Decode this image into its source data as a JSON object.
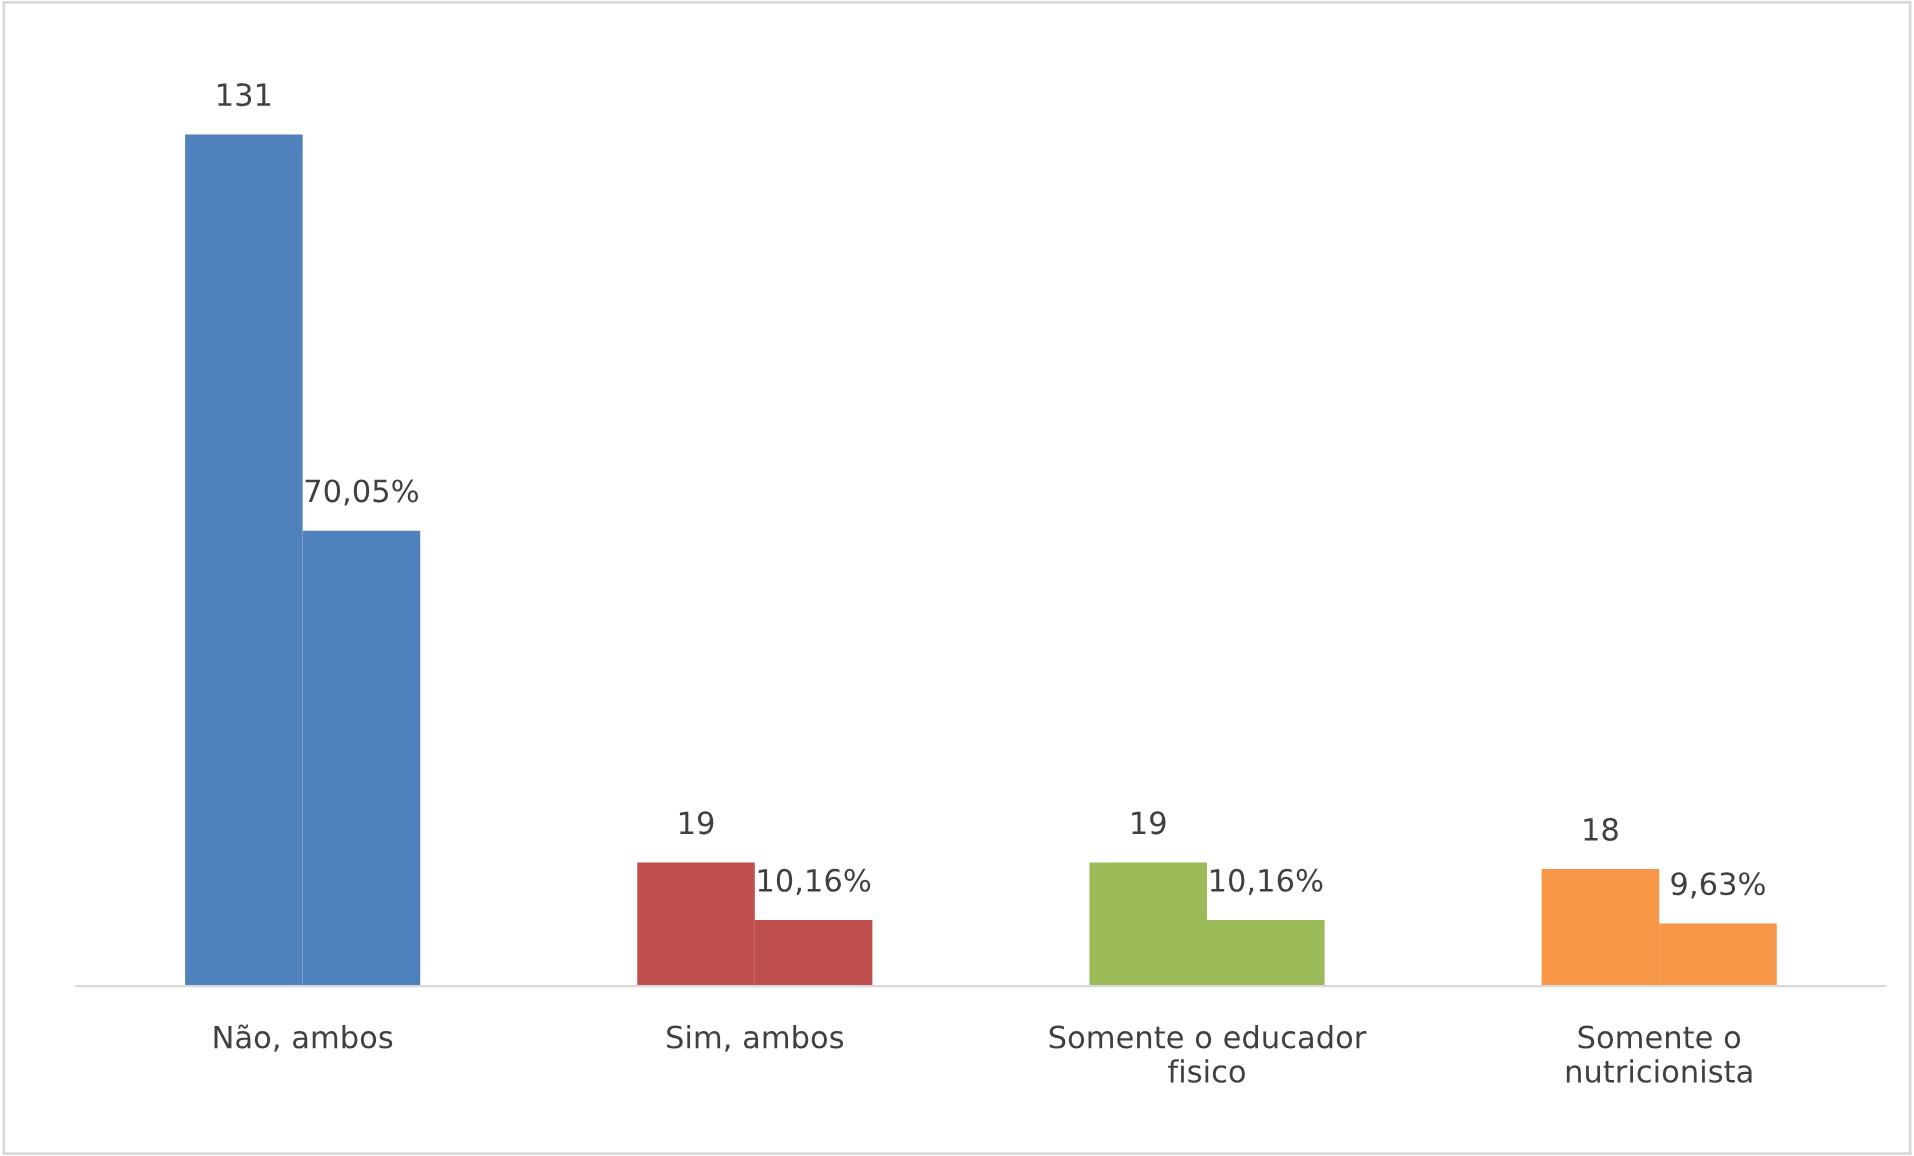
{
  "chart_data": {
    "type": "bar",
    "categories": [
      "Não, ambos",
      "Sim, ambos",
      "Somente o educador\nfisico",
      "Somente o\nnutricionista"
    ],
    "series": [
      {
        "values": [
          131,
          19,
          19,
          18
        ],
        "colors": [
          "#4f81bd",
          "#c0504d",
          "#9bbb59",
          "#f79646"
        ],
        "value_labels": [
          "131",
          "19",
          "19",
          "18"
        ]
      },
      {
        "values": [
          70.05,
          10.16,
          10.16,
          9.63
        ],
        "colors": [
          "#4f81bd",
          "#c0504d",
          "#9bbb59",
          "#f79646"
        ],
        "value_labels": [
          "70,05%",
          "10,16%",
          "10,16%",
          "9,63%"
        ]
      }
    ],
    "legend": false
  }
}
